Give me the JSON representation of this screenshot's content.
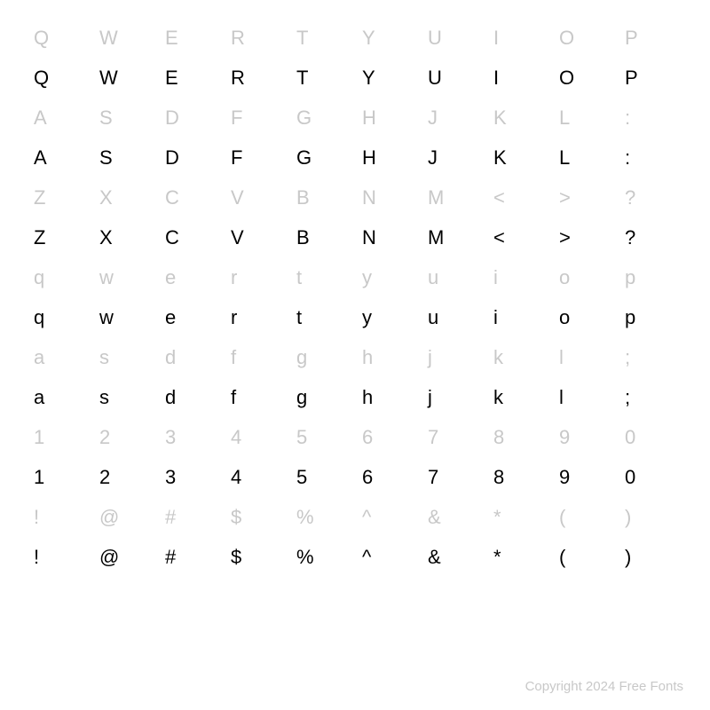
{
  "rows": [
    {
      "type": "label",
      "chars": [
        "Q",
        "W",
        "E",
        "R",
        "T",
        "Y",
        "U",
        "I",
        "O",
        "P"
      ]
    },
    {
      "type": "glyph",
      "chars": [
        "Q",
        "W",
        "E",
        "R",
        "T",
        "Y",
        "U",
        "I",
        "O",
        "P"
      ]
    },
    {
      "type": "label",
      "chars": [
        "A",
        "S",
        "D",
        "F",
        "G",
        "H",
        "J",
        "K",
        "L",
        ":"
      ]
    },
    {
      "type": "glyph",
      "chars": [
        "A",
        "S",
        "D",
        "F",
        "G",
        "H",
        "J",
        "K",
        "L",
        ":"
      ]
    },
    {
      "type": "label",
      "chars": [
        "Z",
        "X",
        "C",
        "V",
        "B",
        "N",
        "M",
        "<",
        ">",
        "?"
      ]
    },
    {
      "type": "glyph",
      "chars": [
        "Z",
        "X",
        "C",
        "V",
        "B",
        "N",
        "M",
        "<",
        ">",
        "?"
      ]
    },
    {
      "type": "label",
      "chars": [
        "q",
        "w",
        "e",
        "r",
        "t",
        "y",
        "u",
        "i",
        "o",
        "p"
      ]
    },
    {
      "type": "glyph",
      "chars": [
        "q",
        "w",
        "e",
        "r",
        "t",
        "y",
        "u",
        "i",
        "o",
        "p"
      ]
    },
    {
      "type": "label",
      "chars": [
        "a",
        "s",
        "d",
        "f",
        "g",
        "h",
        "j",
        "k",
        "l",
        ";"
      ]
    },
    {
      "type": "glyph",
      "chars": [
        "a",
        "s",
        "d",
        "f",
        "g",
        "h",
        "j",
        "k",
        "l",
        ";"
      ]
    },
    {
      "type": "label",
      "chars": [
        "1",
        "2",
        "3",
        "4",
        "5",
        "6",
        "7",
        "8",
        "9",
        "0"
      ]
    },
    {
      "type": "glyph",
      "chars": [
        "1",
        "2",
        "3",
        "4",
        "5",
        "6",
        "7",
        "8",
        "9",
        "0"
      ]
    },
    {
      "type": "label",
      "chars": [
        "!",
        "@",
        "#",
        "$",
        "%",
        "^",
        "&",
        "*",
        "(",
        ")"
      ]
    },
    {
      "type": "glyph",
      "chars": [
        "!",
        "@",
        "#",
        "$",
        "%",
        "^",
        "&",
        "*",
        "(",
        ")"
      ]
    }
  ],
  "footer": "Copyright 2024 Free Fonts",
  "colors": {
    "label": "#c8c8c8",
    "glyph": "#000000",
    "background": "#ffffff"
  },
  "font_size_cell": 22,
  "font_size_footer": 15
}
